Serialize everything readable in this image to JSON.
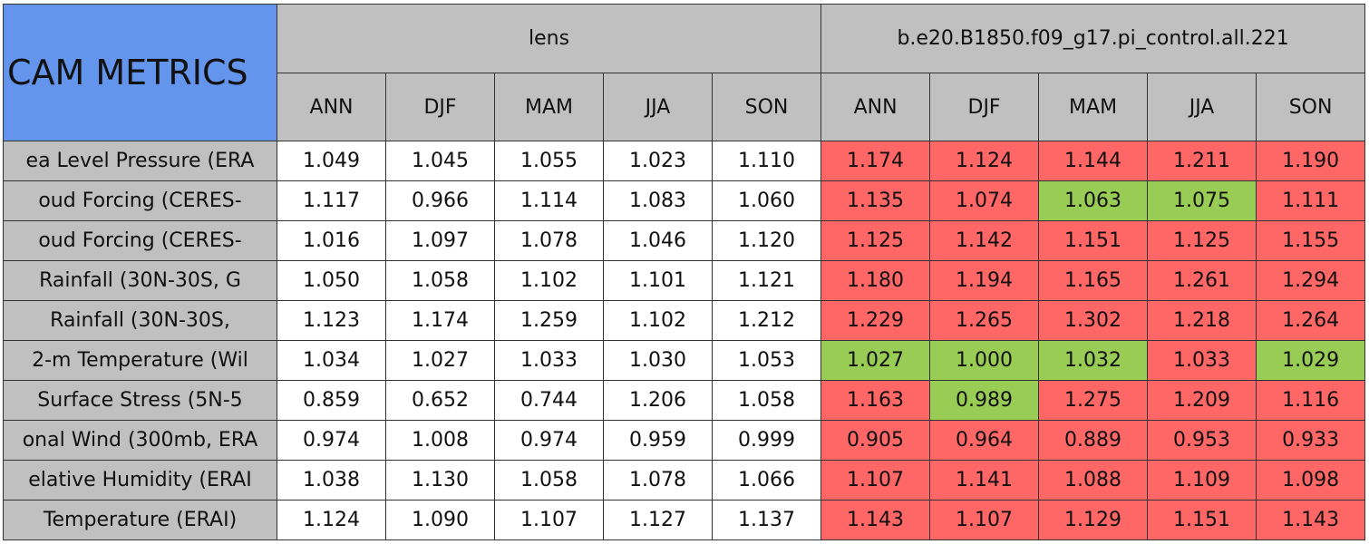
{
  "header": {
    "title": "CAM METRICS",
    "groups": [
      "lens",
      "b.e20.B1850.f09_g17.pi_control.all.221"
    ],
    "seasons": [
      [
        "ANN",
        "DJF",
        "MAM",
        "JJA",
        "SON"
      ],
      [
        "ANN",
        "DJF",
        "MAM",
        "JJA",
        "SON"
      ]
    ]
  },
  "table": {
    "rows": [
      {
        "label": "ea Level Pressure (ERA",
        "cells": [
          "1.049",
          "1.045",
          "1.055",
          "1.023",
          "1.110",
          "1.174",
          "1.124",
          "1.144",
          "1.211",
          "1.190"
        ],
        "colors": [
          "#ffffff",
          "#ffffff",
          "#ffffff",
          "#ffffff",
          "#ffffff",
          "#ff6666",
          "#ff6666",
          "#ff6666",
          "#ff6666",
          "#ff6666"
        ]
      },
      {
        "label": "oud Forcing (CERES-",
        "cells": [
          "1.117",
          "0.966",
          "1.114",
          "1.083",
          "1.060",
          "1.135",
          "1.074",
          "1.063",
          "1.075",
          "1.111"
        ],
        "colors": [
          "#ffffff",
          "#ffffff",
          "#ffffff",
          "#ffffff",
          "#ffffff",
          "#ff6666",
          "#ff6666",
          "#99cc55",
          "#99cc55",
          "#ff6666"
        ]
      },
      {
        "label": "oud Forcing (CERES-",
        "cells": [
          "1.016",
          "1.097",
          "1.078",
          "1.046",
          "1.120",
          "1.125",
          "1.142",
          "1.151",
          "1.125",
          "1.155"
        ],
        "colors": [
          "#ffffff",
          "#ffffff",
          "#ffffff",
          "#ffffff",
          "#ffffff",
          "#ff6666",
          "#ff6666",
          "#ff6666",
          "#ff6666",
          "#ff6666"
        ]
      },
      {
        "label": "Rainfall (30N-30S, G",
        "cells": [
          "1.050",
          "1.058",
          "1.102",
          "1.101",
          "1.121",
          "1.180",
          "1.194",
          "1.165",
          "1.261",
          "1.294"
        ],
        "colors": [
          "#ffffff",
          "#ffffff",
          "#ffffff",
          "#ffffff",
          "#ffffff",
          "#ff6666",
          "#ff6666",
          "#ff6666",
          "#ff6666",
          "#ff6666"
        ]
      },
      {
        "label": "Rainfall (30N-30S,",
        "cells": [
          "1.123",
          "1.174",
          "1.259",
          "1.102",
          "1.212",
          "1.229",
          "1.265",
          "1.302",
          "1.218",
          "1.264"
        ],
        "colors": [
          "#ffffff",
          "#ffffff",
          "#ffffff",
          "#ffffff",
          "#ffffff",
          "#ff6666",
          "#ff6666",
          "#ff6666",
          "#ff6666",
          "#ff6666"
        ]
      },
      {
        "label": "2-m Temperature (Wil",
        "cells": [
          "1.034",
          "1.027",
          "1.033",
          "1.030",
          "1.053",
          "1.027",
          "1.000",
          "1.032",
          "1.033",
          "1.029"
        ],
        "colors": [
          "#ffffff",
          "#ffffff",
          "#ffffff",
          "#ffffff",
          "#ffffff",
          "#99cc55",
          "#99cc55",
          "#99cc55",
          "#ff6666",
          "#99cc55"
        ]
      },
      {
        "label": "Surface Stress (5N-5",
        "cells": [
          "0.859",
          "0.652",
          "0.744",
          "1.206",
          "1.058",
          "1.163",
          "0.989",
          "1.275",
          "1.209",
          "1.116"
        ],
        "colors": [
          "#ffffff",
          "#ffffff",
          "#ffffff",
          "#ffffff",
          "#ffffff",
          "#ff6666",
          "#99cc55",
          "#ff6666",
          "#ff6666",
          "#ff6666"
        ]
      },
      {
        "label": "onal Wind (300mb, ERA",
        "cells": [
          "0.974",
          "1.008",
          "0.974",
          "0.959",
          "0.999",
          "0.905",
          "0.964",
          "0.889",
          "0.953",
          "0.933"
        ],
        "colors": [
          "#ffffff",
          "#ffffff",
          "#ffffff",
          "#ffffff",
          "#ffffff",
          "#ff6666",
          "#ff6666",
          "#ff6666",
          "#ff6666",
          "#ff6666"
        ]
      },
      {
        "label": "elative Humidity (ERAI",
        "cells": [
          "1.038",
          "1.130",
          "1.058",
          "1.078",
          "1.066",
          "1.107",
          "1.141",
          "1.088",
          "1.109",
          "1.098"
        ],
        "colors": [
          "#ffffff",
          "#ffffff",
          "#ffffff",
          "#ffffff",
          "#ffffff",
          "#ff6666",
          "#ff6666",
          "#ff6666",
          "#ff6666",
          "#ff6666"
        ]
      },
      {
        "label": "Temperature (ERAI)",
        "cells": [
          "1.124",
          "1.090",
          "1.107",
          "1.127",
          "1.137",
          "1.143",
          "1.107",
          "1.129",
          "1.151",
          "1.143"
        ],
        "colors": [
          "#ffffff",
          "#ffffff",
          "#ffffff",
          "#ffffff",
          "#ffffff",
          "#ff6666",
          "#ff6666",
          "#ff6666",
          "#ff6666",
          "#ff6666"
        ]
      }
    ]
  },
  "colors": {
    "title": "#6495ed",
    "header": "#c0c0c0",
    "label": "#c0c0c0"
  }
}
